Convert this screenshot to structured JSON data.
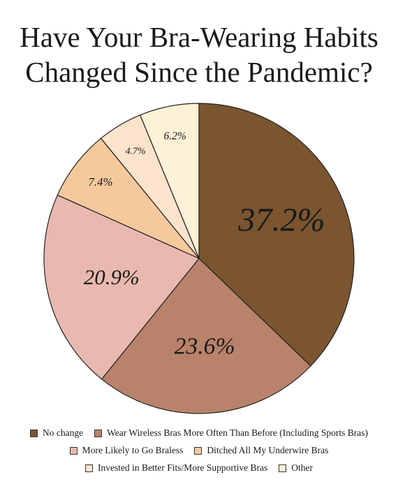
{
  "chart_data": {
    "type": "pie",
    "title": "Have Your Bra-Wearing Habits Changed Since the Pandemic?",
    "categories": [
      "No change",
      "Wear Wireless Bras More Often Than Before (Including Sports Bras)",
      "More Likely to Go Braless",
      "Ditched All My Underwire Bras",
      "Invested in Better Fits/More Supportive Bras",
      "Other"
    ],
    "values": [
      37.2,
      23.6,
      20.9,
      7.4,
      4.7,
      6.2
    ],
    "value_labels": [
      "37.2%",
      "23.6%",
      "20.9%",
      "7.4%",
      "4.7%",
      "6.2%"
    ],
    "colors": [
      "#7a5530",
      "#b9826b",
      "#e9b9af",
      "#f6c99c",
      "#fbe3cc",
      "#fdf1d6"
    ],
    "legend": "bottom"
  }
}
